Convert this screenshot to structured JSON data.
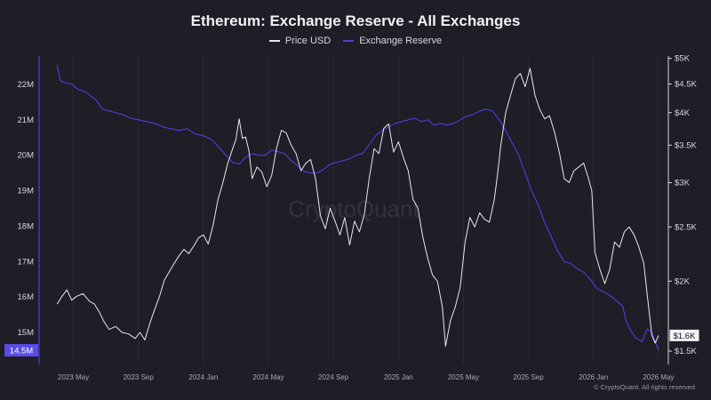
{
  "chart_data": {
    "type": "line",
    "title": "Ethereum: Exchange Reserve - All Exchanges",
    "legend_position": "top-center",
    "grid": true,
    "watermark": "CryptoQuant",
    "footer": "© CryptoQuant. All rights reserved",
    "x_ticks": [
      "2023 May",
      "2023 Sep",
      "2024 Jan",
      "2024 May",
      "2024 Sep",
      "2025 Jan",
      "2025 May",
      "2025 Sep",
      "2026 Jan",
      "2026 May"
    ],
    "x_range": [
      0,
      38.5
    ],
    "left_axis": {
      "ticks": [
        "22M",
        "21M",
        "20M",
        "19M",
        "18M",
        "17M",
        "16M",
        "15M"
      ],
      "tick_values": [
        22,
        21,
        20,
        19,
        18,
        17,
        16,
        15
      ],
      "range": [
        14.1,
        22.8
      ],
      "unit": "M",
      "current_label": "14.5M",
      "current_value": 14.5
    },
    "right_axis": {
      "scale": "log",
      "ticks": [
        "$5K",
        "$4.5K",
        "$4K",
        "$3.5K",
        "$3K",
        "$2.5K",
        "$2K",
        "$1.5K"
      ],
      "tick_values": [
        5000,
        4500,
        4000,
        3500,
        3000,
        2500,
        2000,
        1500
      ],
      "range": [
        1420,
        5050
      ],
      "current_label": "$1.6K",
      "current_value": 1600
    },
    "series": [
      {
        "name": "Price USD",
        "axis": "right",
        "color": "#e9e9ee",
        "points": [
          [
            1.0,
            1820
          ],
          [
            1.3,
            1880
          ],
          [
            1.6,
            1930
          ],
          [
            1.9,
            1850
          ],
          [
            2.2,
            1880
          ],
          [
            2.6,
            1900
          ],
          [
            3.0,
            1840
          ],
          [
            3.3,
            1820
          ],
          [
            3.6,
            1760
          ],
          [
            3.9,
            1690
          ],
          [
            4.2,
            1640
          ],
          [
            4.6,
            1660
          ],
          [
            5.0,
            1620
          ],
          [
            5.4,
            1610
          ],
          [
            5.8,
            1580
          ],
          [
            6.1,
            1620
          ],
          [
            6.4,
            1570
          ],
          [
            6.7,
            1680
          ],
          [
            7.0,
            1780
          ],
          [
            7.3,
            1880
          ],
          [
            7.6,
            2010
          ],
          [
            7.9,
            2080
          ],
          [
            8.2,
            2150
          ],
          [
            8.5,
            2220
          ],
          [
            8.8,
            2280
          ],
          [
            9.1,
            2240
          ],
          [
            9.4,
            2310
          ],
          [
            9.7,
            2390
          ],
          [
            10.0,
            2420
          ],
          [
            10.3,
            2330
          ],
          [
            10.6,
            2520
          ],
          [
            10.9,
            2800
          ],
          [
            11.2,
            3000
          ],
          [
            11.5,
            3250
          ],
          [
            11.8,
            3450
          ],
          [
            12.0,
            3580
          ],
          [
            12.2,
            3900
          ],
          [
            12.4,
            3600
          ],
          [
            12.6,
            3620
          ],
          [
            12.8,
            3420
          ],
          [
            13.0,
            3050
          ],
          [
            13.3,
            3200
          ],
          [
            13.6,
            3130
          ],
          [
            13.9,
            2950
          ],
          [
            14.2,
            3090
          ],
          [
            14.5,
            3450
          ],
          [
            14.8,
            3720
          ],
          [
            15.1,
            3680
          ],
          [
            15.4,
            3500
          ],
          [
            15.7,
            3380
          ],
          [
            16.0,
            3150
          ],
          [
            16.3,
            3250
          ],
          [
            16.6,
            3300
          ],
          [
            16.9,
            3050
          ],
          [
            17.2,
            2620
          ],
          [
            17.5,
            2480
          ],
          [
            17.8,
            2700
          ],
          [
            18.1,
            2560
          ],
          [
            18.4,
            2420
          ],
          [
            18.7,
            2600
          ],
          [
            19.0,
            2320
          ],
          [
            19.3,
            2560
          ],
          [
            19.6,
            2450
          ],
          [
            19.9,
            2630
          ],
          [
            20.2,
            3050
          ],
          [
            20.5,
            3450
          ],
          [
            20.8,
            3380
          ],
          [
            21.1,
            3750
          ],
          [
            21.4,
            3820
          ],
          [
            21.7,
            3400
          ],
          [
            22.0,
            3550
          ],
          [
            22.3,
            3330
          ],
          [
            22.6,
            3150
          ],
          [
            22.9,
            2800
          ],
          [
            23.2,
            2700
          ],
          [
            23.5,
            2400
          ],
          [
            23.8,
            2200
          ],
          [
            24.1,
            2050
          ],
          [
            24.4,
            2000
          ],
          [
            24.7,
            1800
          ],
          [
            24.9,
            1530
          ],
          [
            25.2,
            1700
          ],
          [
            25.5,
            1800
          ],
          [
            25.8,
            1950
          ],
          [
            26.1,
            2350
          ],
          [
            26.4,
            2600
          ],
          [
            26.7,
            2500
          ],
          [
            27.0,
            2650
          ],
          [
            27.3,
            2580
          ],
          [
            27.6,
            2550
          ],
          [
            27.9,
            2800
          ],
          [
            28.1,
            3100
          ],
          [
            28.3,
            3500
          ],
          [
            28.6,
            4000
          ],
          [
            28.9,
            4300
          ],
          [
            29.2,
            4600
          ],
          [
            29.5,
            4700
          ],
          [
            29.8,
            4450
          ],
          [
            30.1,
            4800
          ],
          [
            30.4,
            4300
          ],
          [
            30.7,
            4050
          ],
          [
            31.0,
            3900
          ],
          [
            31.3,
            3950
          ],
          [
            31.6,
            3700
          ],
          [
            31.9,
            3400
          ],
          [
            32.2,
            3050
          ],
          [
            32.5,
            3000
          ],
          [
            32.8,
            3150
          ],
          [
            33.1,
            3200
          ],
          [
            33.4,
            3250
          ],
          [
            33.7,
            3050
          ],
          [
            33.9,
            2900
          ],
          [
            34.1,
            2250
          ],
          [
            34.4,
            2100
          ],
          [
            34.7,
            1980
          ],
          [
            35.0,
            2100
          ],
          [
            35.3,
            2350
          ],
          [
            35.6,
            2300
          ],
          [
            35.9,
            2450
          ],
          [
            36.2,
            2500
          ],
          [
            36.5,
            2420
          ],
          [
            36.8,
            2300
          ],
          [
            37.1,
            2150
          ],
          [
            37.3,
            1900
          ],
          [
            37.6,
            1600
          ],
          [
            37.8,
            1550
          ],
          [
            38.0,
            1600
          ]
        ]
      },
      {
        "name": "Exchange Reserve",
        "axis": "left",
        "color": "#4b3fe0",
        "points": [
          [
            1.0,
            22.55
          ],
          [
            1.2,
            22.1
          ],
          [
            1.5,
            22.05
          ],
          [
            1.9,
            22.0
          ],
          [
            2.3,
            21.85
          ],
          [
            2.7,
            21.8
          ],
          [
            3.0,
            21.7
          ],
          [
            3.4,
            21.55
          ],
          [
            3.8,
            21.3
          ],
          [
            4.2,
            21.25
          ],
          [
            4.6,
            21.2
          ],
          [
            5.0,
            21.15
          ],
          [
            5.5,
            21.05
          ],
          [
            6.0,
            21.0
          ],
          [
            6.5,
            20.95
          ],
          [
            7.0,
            20.9
          ],
          [
            7.5,
            20.8
          ],
          [
            8.0,
            20.75
          ],
          [
            8.5,
            20.7
          ],
          [
            9.0,
            20.75
          ],
          [
            9.5,
            20.6
          ],
          [
            10.0,
            20.55
          ],
          [
            10.5,
            20.45
          ],
          [
            11.0,
            20.2
          ],
          [
            11.4,
            20.0
          ],
          [
            11.8,
            19.8
          ],
          [
            12.2,
            19.75
          ],
          [
            12.6,
            19.95
          ],
          [
            13.0,
            20.05
          ],
          [
            13.4,
            20.0
          ],
          [
            13.8,
            20.0
          ],
          [
            14.2,
            20.15
          ],
          [
            14.6,
            20.1
          ],
          [
            15.0,
            20.05
          ],
          [
            15.4,
            19.85
          ],
          [
            15.8,
            19.7
          ],
          [
            16.2,
            19.55
          ],
          [
            16.6,
            19.5
          ],
          [
            17.0,
            19.5
          ],
          [
            17.4,
            19.6
          ],
          [
            17.8,
            19.75
          ],
          [
            18.2,
            19.8
          ],
          [
            18.6,
            19.85
          ],
          [
            19.0,
            19.9
          ],
          [
            19.4,
            20.0
          ],
          [
            19.8,
            20.05
          ],
          [
            20.2,
            20.3
          ],
          [
            20.6,
            20.55
          ],
          [
            21.0,
            20.7
          ],
          [
            21.4,
            20.8
          ],
          [
            21.8,
            20.9
          ],
          [
            22.2,
            20.95
          ],
          [
            22.6,
            21.0
          ],
          [
            23.0,
            21.05
          ],
          [
            23.4,
            20.95
          ],
          [
            23.8,
            21.0
          ],
          [
            24.2,
            20.85
          ],
          [
            24.6,
            20.9
          ],
          [
            25.0,
            20.85
          ],
          [
            25.4,
            20.9
          ],
          [
            25.8,
            21.0
          ],
          [
            26.2,
            21.1
          ],
          [
            26.6,
            21.15
          ],
          [
            27.0,
            21.25
          ],
          [
            27.4,
            21.3
          ],
          [
            27.8,
            21.25
          ],
          [
            28.2,
            21.0
          ],
          [
            28.6,
            20.7
          ],
          [
            29.0,
            20.35
          ],
          [
            29.4,
            20.0
          ],
          [
            29.8,
            19.5
          ],
          [
            30.2,
            19.0
          ],
          [
            30.6,
            18.6
          ],
          [
            31.0,
            18.1
          ],
          [
            31.4,
            17.7
          ],
          [
            31.8,
            17.3
          ],
          [
            32.2,
            17.0
          ],
          [
            32.6,
            16.95
          ],
          [
            33.0,
            16.8
          ],
          [
            33.4,
            16.7
          ],
          [
            33.8,
            16.5
          ],
          [
            34.2,
            16.25
          ],
          [
            34.6,
            16.15
          ],
          [
            35.0,
            16.05
          ],
          [
            35.4,
            15.9
          ],
          [
            35.8,
            15.75
          ],
          [
            36.0,
            15.35
          ],
          [
            36.3,
            15.05
          ],
          [
            36.6,
            14.85
          ],
          [
            37.0,
            14.75
          ],
          [
            37.3,
            15.1
          ],
          [
            37.6,
            15.0
          ],
          [
            37.8,
            14.75
          ],
          [
            38.0,
            14.5
          ]
        ]
      }
    ]
  }
}
